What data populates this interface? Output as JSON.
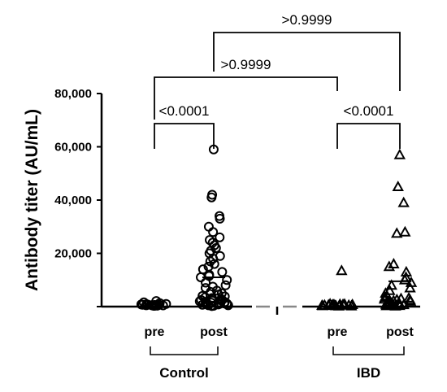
{
  "chart_data": {
    "type": "scatter",
    "title": "",
    "ylabel": "Antibody titer (AU/mL)",
    "ylim": [
      0,
      80000
    ],
    "yticks": [
      0,
      20000,
      40000,
      60000,
      80000
    ],
    "ytick_labels": [
      "20,000",
      "40,000",
      "60,000",
      "80,000"
    ],
    "grid": false,
    "categories": [
      "pre",
      "post",
      "pre",
      "post"
    ],
    "groups": [
      {
        "label": "Control",
        "categories": [
          0,
          1
        ]
      },
      {
        "label": "IBD",
        "categories": [
          2,
          3
        ]
      }
    ],
    "series": [
      {
        "name": "Control",
        "marker": "circle",
        "points": [
          {
            "cat": 0,
            "values": [
              300,
              500,
              700,
              900,
              400,
              600,
              800,
              1000,
              350,
              550,
              750,
              450,
              650,
              850,
              300,
              500,
              1300,
              1600,
              2100
            ]
          },
          {
            "cat": 1,
            "values": [
              59000,
              42000,
              41000,
              34000,
              33000,
              30000,
              28000,
              26000,
              25000,
              24000,
              23000,
              22000,
              21000,
              20000,
              19000,
              18000,
              17000,
              16000,
              15000,
              14000,
              13000,
              12000,
              11500,
              11000,
              10000,
              9000,
              8000,
              7500,
              7000,
              6000,
              5500,
              5000,
              4500,
              4000,
              3500,
              3000,
              2500,
              2000,
              1500,
              1000,
              800,
              600,
              500,
              400,
              300,
              200,
              1200,
              2200,
              3200,
              900,
              1800,
              2800,
              700,
              1400,
              2600,
              3800,
              500,
              1100,
              1700,
              2300
            ]
          },
          {
            "cat": 1,
            "mean": 11000
          }
        ]
      },
      {
        "name": "IBD",
        "marker": "triangle",
        "points": [
          {
            "cat": 2,
            "values": [
              13500,
              200,
              300,
              400,
              500,
              600,
              700,
              800,
              900,
              1000,
              250,
              450,
              650,
              850,
              350,
              550,
              750,
              300,
              500,
              700
            ]
          },
          {
            "cat": 3,
            "values": [
              57000,
              45000,
              39000,
              28000,
              27500,
              16000,
              15000,
              13000,
              11000,
              10000,
              9000,
              8000,
              7000,
              6000,
              5000,
              4000,
              3500,
              3000,
              2500,
              2000,
              1500,
              1000,
              800,
              600,
              400,
              300,
              200,
              1200,
              2200,
              3200,
              900,
              1800,
              2800,
              700,
              1400,
              2600,
              500,
              1100
            ]
          },
          {
            "cat": 3,
            "mean": 9500
          }
        ]
      }
    ],
    "comparisons": [
      {
        "from": 0,
        "to": 1,
        "label": "<0.0001"
      },
      {
        "from": 2,
        "to": 3,
        "label": "<0.0001"
      },
      {
        "from": 0,
        "to": 2,
        "label": ">0.9999"
      },
      {
        "from": 1,
        "to": 3,
        "label": ">0.9999"
      }
    ],
    "colors": {
      "marker": "#000000",
      "axis": "#000000",
      "gap": "#888888"
    }
  }
}
